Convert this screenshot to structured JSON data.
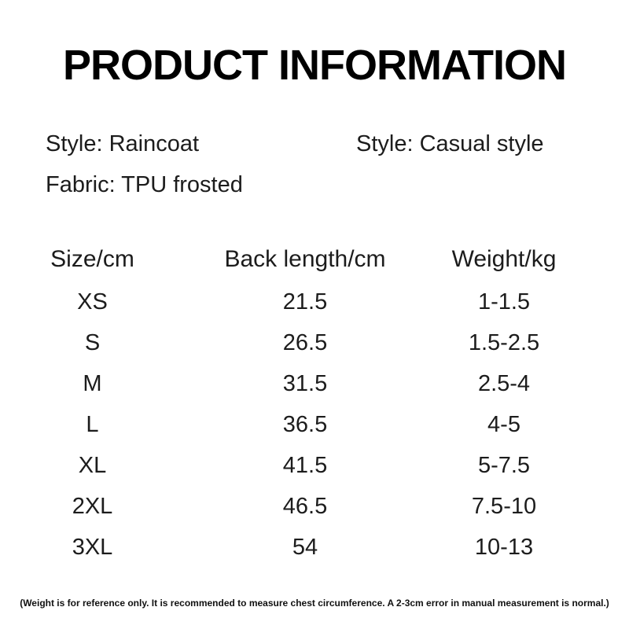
{
  "title": "PRODUCT INFORMATION",
  "details": {
    "style_left": "Style: Raincoat",
    "style_right": "Style: Casual style",
    "fabric": "Fabric: TPU frosted"
  },
  "size_table": {
    "headers": [
      "Size/cm",
      "Back length/cm",
      "Weight/kg"
    ],
    "rows": [
      [
        "XS",
        "21.5",
        "1-1.5"
      ],
      [
        "S",
        "26.5",
        "1.5-2.5"
      ],
      [
        "M",
        "31.5",
        "2.5-4"
      ],
      [
        "L",
        "36.5",
        "4-5"
      ],
      [
        "XL",
        "41.5",
        "5-7.5"
      ],
      [
        "2XL",
        "46.5",
        "7.5-10"
      ],
      [
        "3XL",
        "54",
        "10-13"
      ]
    ]
  },
  "footnote": "(Weight is for reference only. It is recommended to measure chest circumference. A 2-3cm error in manual measurement is normal.)",
  "colors": {
    "background": "#ffffff",
    "text": "#1c1c1c",
    "title": "#000000"
  }
}
